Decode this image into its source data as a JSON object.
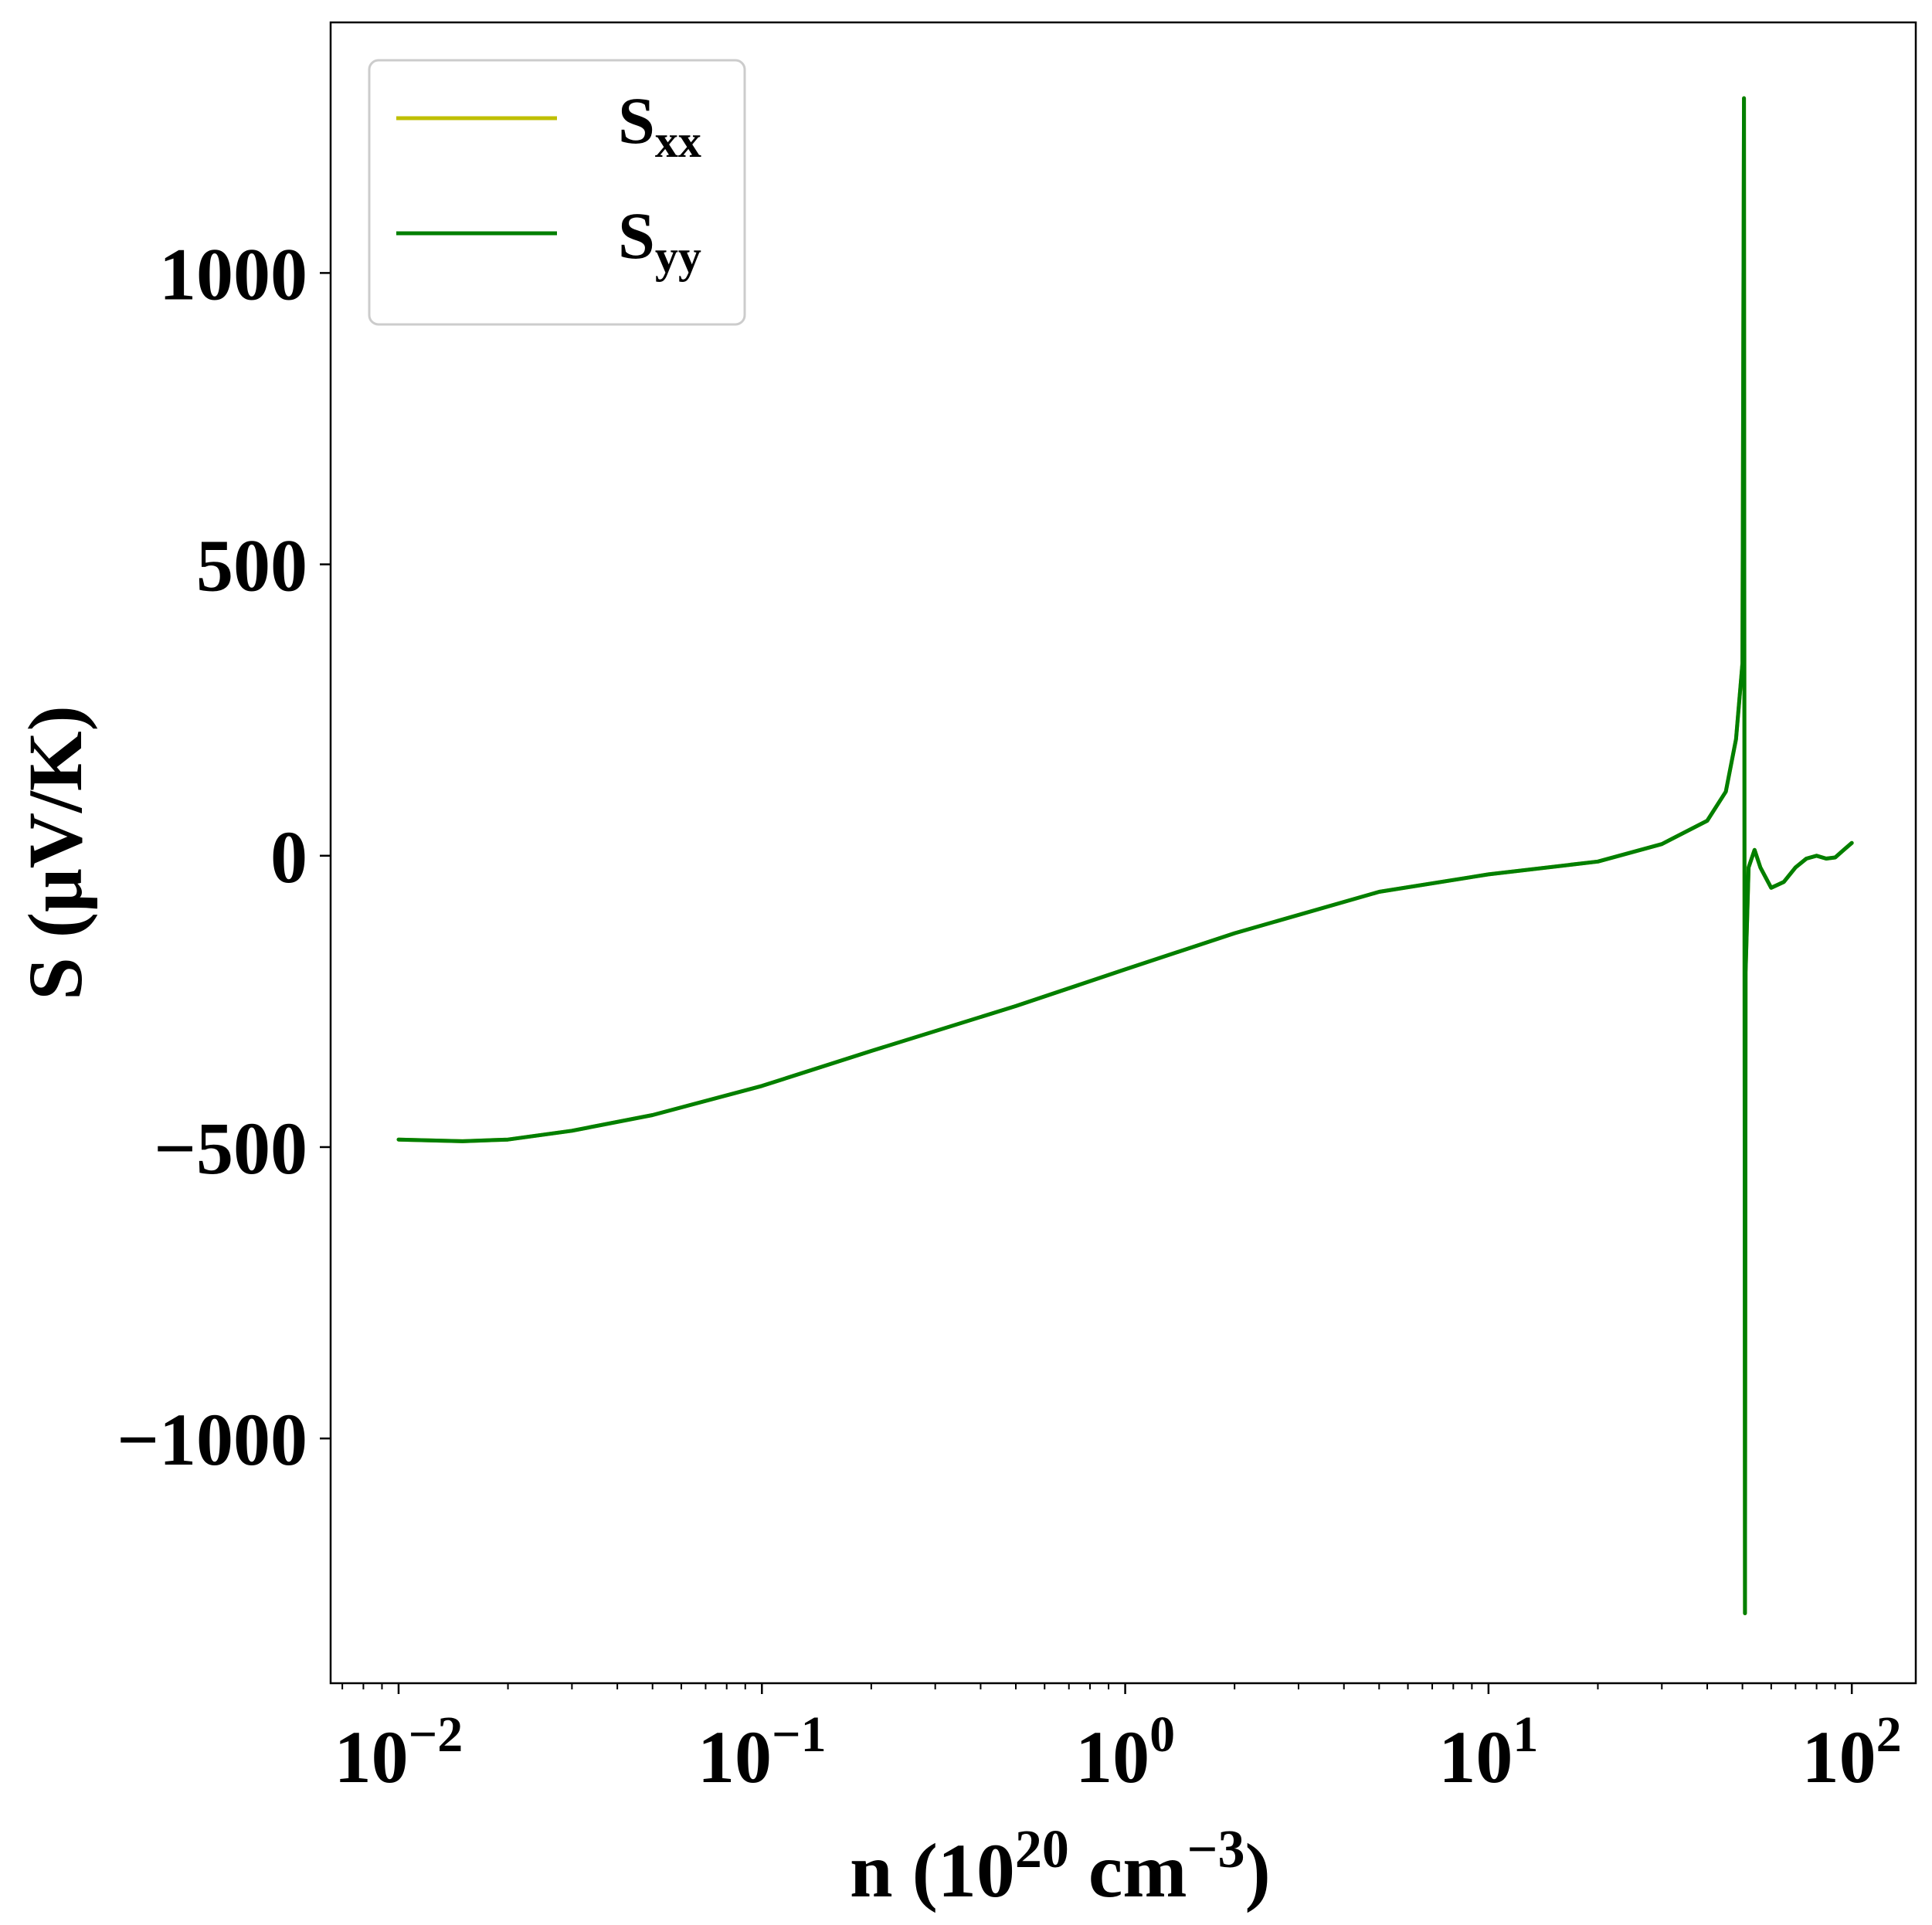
{
  "chart_data": {
    "type": "line",
    "x_scale": "log",
    "xlim": [
      0.0065,
      150
    ],
    "ylim": [
      -1420,
      1430
    ],
    "grid": false,
    "legend_position": "top-left",
    "xlabel": {
      "base": "n (10",
      "sup1": "20",
      "mid": " cm",
      "sup2": "−3",
      "end": ")"
    },
    "ylabel": "S (μV/K)",
    "x_ticks": [
      {
        "value": 0.01,
        "base": "10",
        "exp": "−2"
      },
      {
        "value": 0.1,
        "base": "10",
        "exp": "−1"
      },
      {
        "value": 1,
        "base": "10",
        "exp": "0"
      },
      {
        "value": 10,
        "base": "10",
        "exp": "1"
      },
      {
        "value": 100,
        "base": "10",
        "exp": "2"
      }
    ],
    "y_ticks": [
      {
        "value": -1000,
        "label": "−1000"
      },
      {
        "value": -500,
        "label": "−500"
      },
      {
        "value": 0,
        "label": "0"
      },
      {
        "value": 500,
        "label": "500"
      },
      {
        "value": 1000,
        "label": "1000"
      }
    ],
    "series": [
      {
        "name": "S",
        "subscript": "xx",
        "color": "#bfbf00",
        "points": [
          [
            0.01,
            -487
          ],
          [
            0.015,
            -490
          ],
          [
            0.02,
            -487
          ],
          [
            0.03,
            -472
          ],
          [
            0.05,
            -445
          ],
          [
            0.1,
            -395
          ],
          [
            0.2,
            -335
          ],
          [
            0.5,
            -258
          ],
          [
            1,
            -195
          ],
          [
            2,
            -133
          ],
          [
            5,
            -62
          ],
          [
            10,
            -32
          ],
          [
            20,
            -10
          ],
          [
            30,
            20
          ],
          [
            40,
            60
          ],
          [
            45,
            110
          ],
          [
            48,
            200
          ],
          [
            50,
            330
          ],
          [
            50.5,
            1300
          ],
          [
            50.8,
            -1300
          ],
          [
            51,
            -200
          ],
          [
            52,
            -20
          ],
          [
            54,
            10
          ],
          [
            56,
            -20
          ],
          [
            60,
            -55
          ],
          [
            65,
            -45
          ],
          [
            70,
            -20
          ],
          [
            75,
            -5
          ],
          [
            80,
            0
          ],
          [
            85,
            -5
          ],
          [
            90,
            -3
          ],
          [
            95,
            10
          ],
          [
            100,
            22
          ]
        ]
      },
      {
        "name": "S",
        "subscript": "yy",
        "color": "#007f00",
        "points": [
          [
            0.01,
            -487
          ],
          [
            0.015,
            -490
          ],
          [
            0.02,
            -487
          ],
          [
            0.03,
            -472
          ],
          [
            0.05,
            -445
          ],
          [
            0.1,
            -395
          ],
          [
            0.2,
            -335
          ],
          [
            0.5,
            -258
          ],
          [
            1,
            -195
          ],
          [
            2,
            -133
          ],
          [
            5,
            -62
          ],
          [
            10,
            -32
          ],
          [
            20,
            -10
          ],
          [
            30,
            20
          ],
          [
            40,
            60
          ],
          [
            45,
            110
          ],
          [
            48,
            200
          ],
          [
            50,
            330
          ],
          [
            50.5,
            1300
          ],
          [
            50.8,
            -1300
          ],
          [
            51,
            -200
          ],
          [
            52,
            -20
          ],
          [
            54,
            10
          ],
          [
            56,
            -20
          ],
          [
            60,
            -55
          ],
          [
            65,
            -45
          ],
          [
            70,
            -20
          ],
          [
            75,
            -5
          ],
          [
            80,
            0
          ],
          [
            85,
            -5
          ],
          [
            90,
            -3
          ],
          [
            95,
            10
          ],
          [
            100,
            22
          ]
        ]
      }
    ]
  }
}
